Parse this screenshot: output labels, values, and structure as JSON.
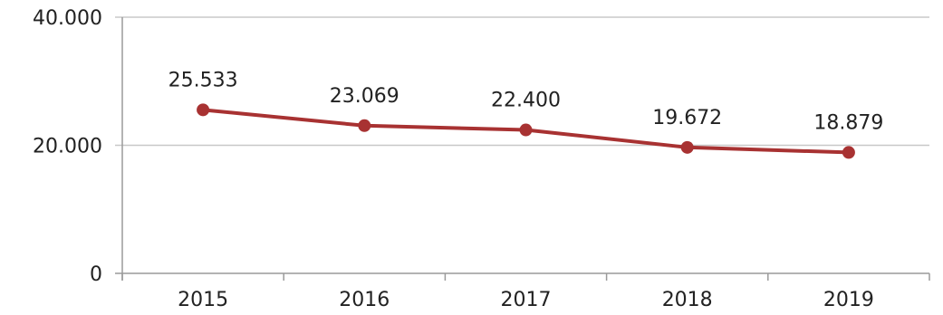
{
  "chart_data": {
    "type": "line",
    "title": "",
    "xlabel": "",
    "ylabel": "",
    "categories": [
      "2015",
      "2016",
      "2017",
      "2018",
      "2019"
    ],
    "series": [
      {
        "values": [
          25533,
          23069,
          22400,
          19672,
          18879
        ],
        "labels": [
          "25.533",
          "23.069",
          "22.400",
          "19.672",
          "18.879"
        ],
        "color": "#a83232"
      }
    ],
    "ylim": [
      0,
      40000
    ],
    "yticks": [
      0,
      20000,
      40000
    ],
    "ytick_labels": [
      "0",
      "20.000",
      "40.000"
    ],
    "grid": true,
    "legend": "none",
    "colors": {
      "grid": "#c8c8c8",
      "axis": "#9a9a9a",
      "text": "#222222"
    }
  }
}
